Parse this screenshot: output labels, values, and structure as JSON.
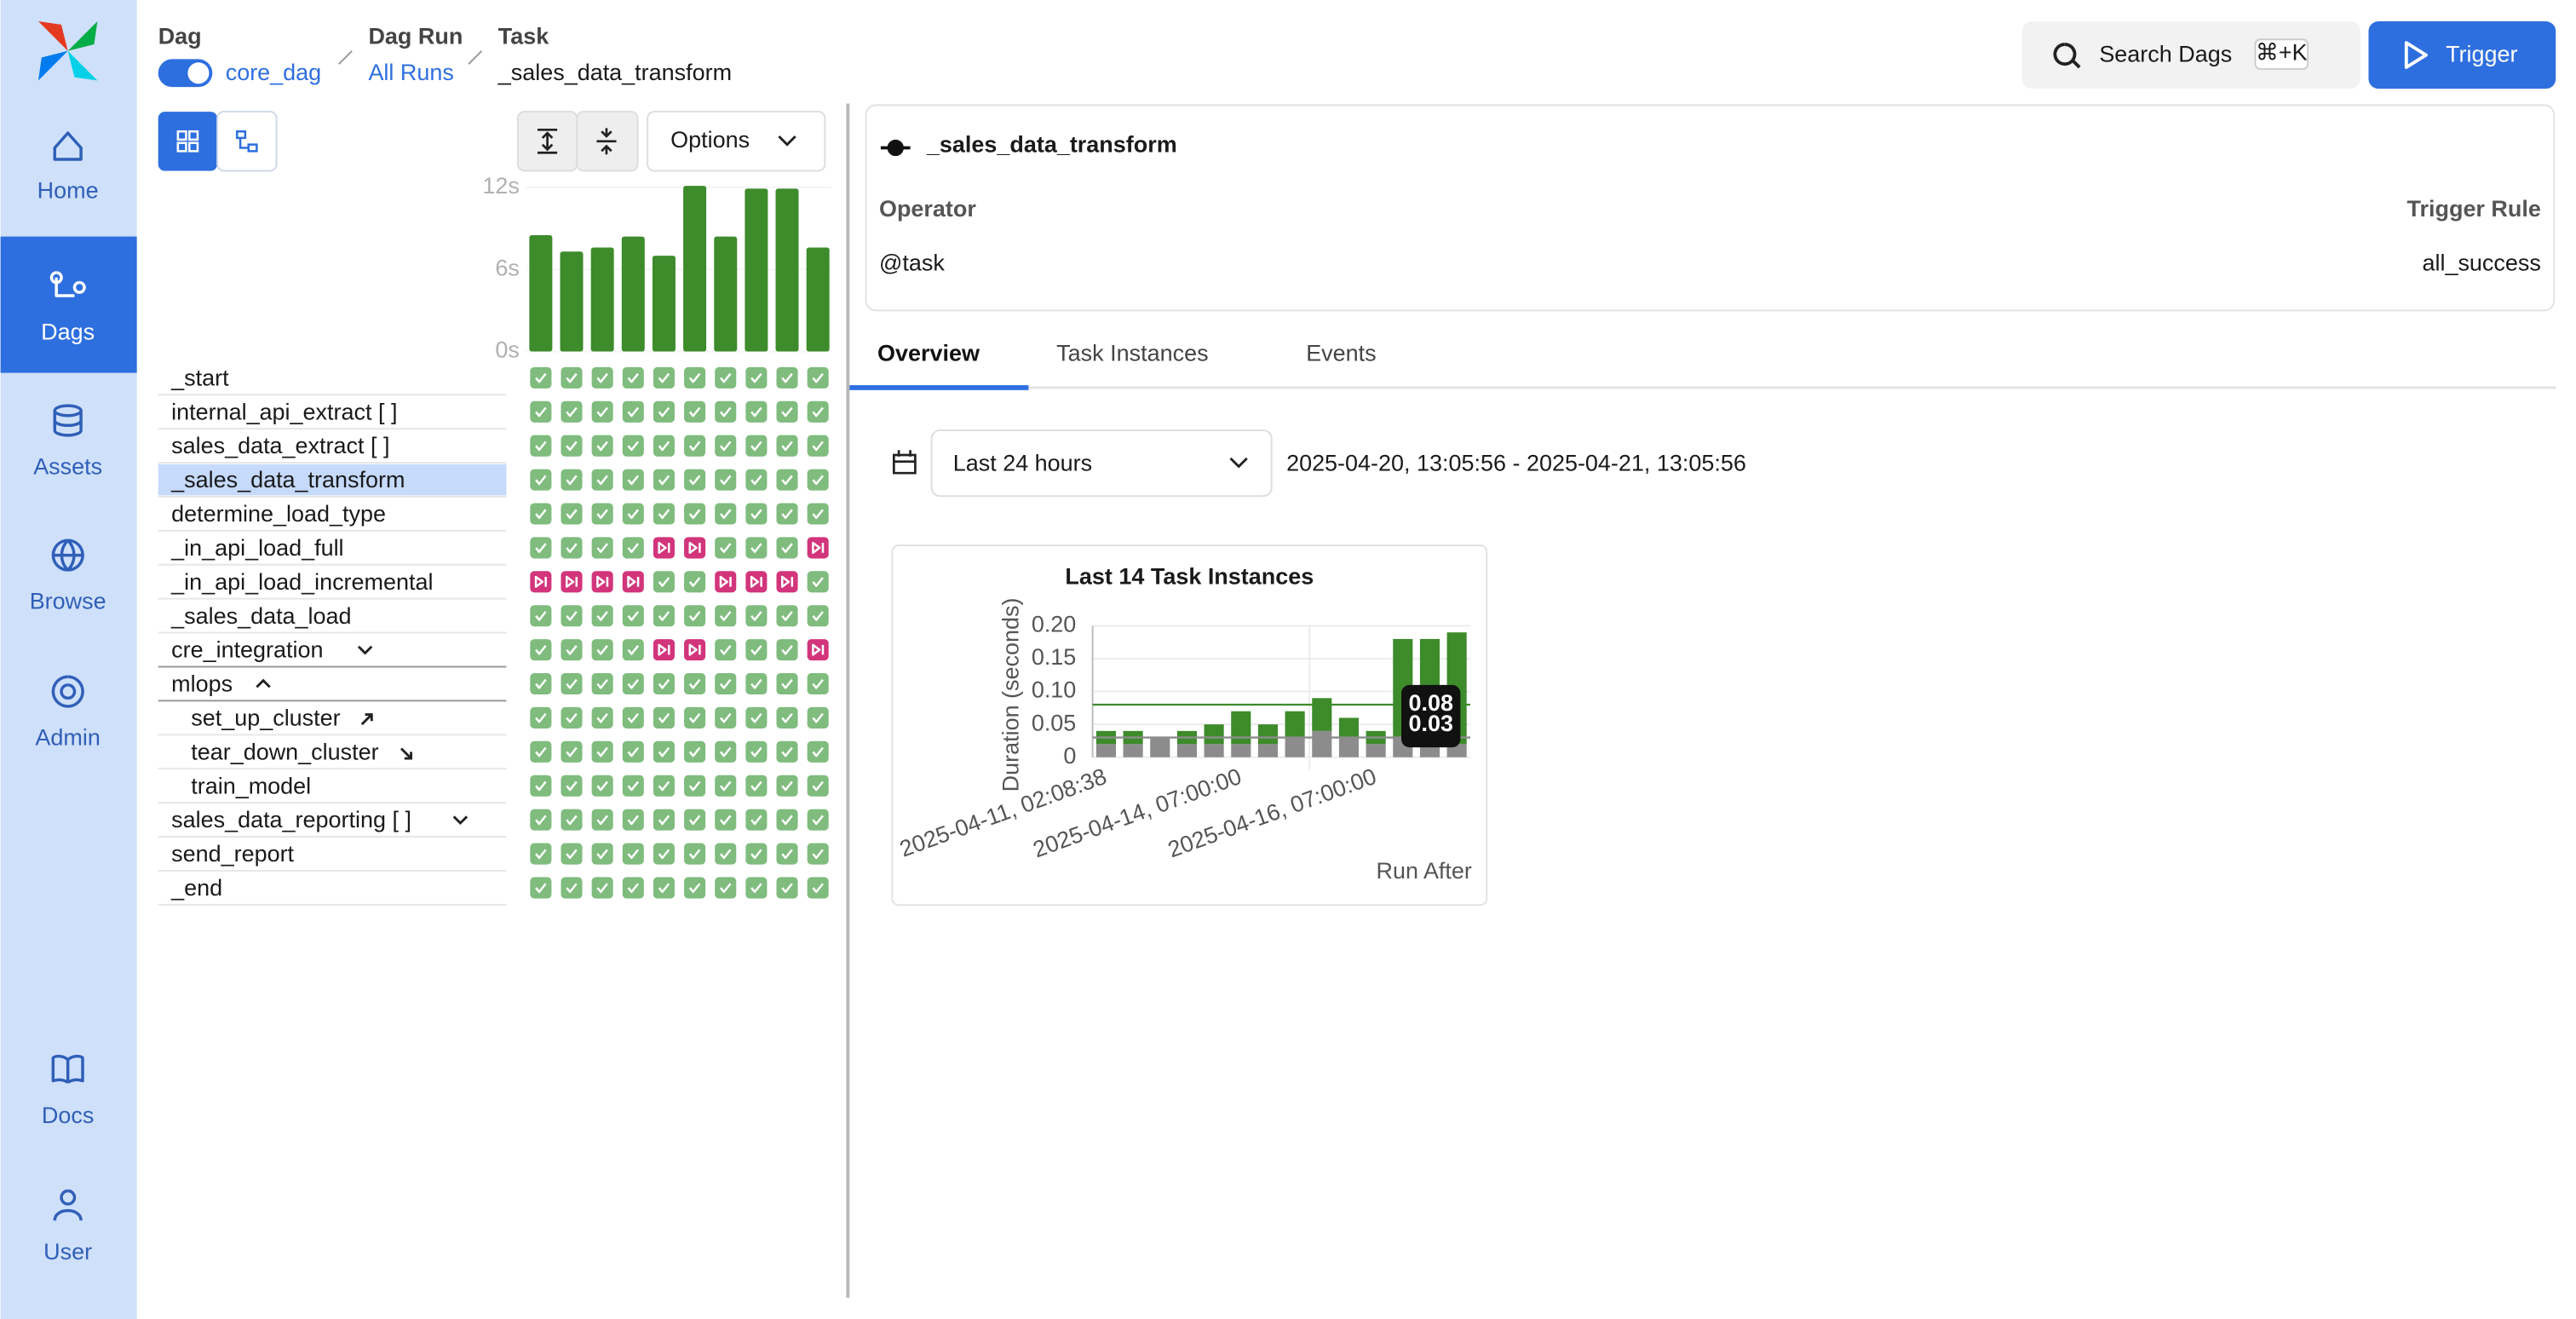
{
  "sidebar": {
    "items": [
      "Home",
      "Dags",
      "Assets",
      "Browse",
      "Admin",
      "Docs",
      "User"
    ]
  },
  "header": {
    "dag_label": "Dag",
    "dag": "core_dag",
    "dag_run_label": "Dag Run",
    "dag_run": "All Runs",
    "task_label": "Task",
    "task": "_sales_data_transform",
    "search": "Search Dags",
    "shortcut": "⌘+K",
    "trigger": "Trigger"
  },
  "grid": {
    "options": "Options",
    "task_names": [
      "_start",
      "internal_api_extract [ ]",
      "sales_data_extract [ ]",
      "_sales_data_transform",
      "determine_load_type",
      "_in_api_load_full",
      "_in_api_load_incremental",
      "_sales_data_load",
      "cre_integration",
      "mlops",
      "set_up_cluster",
      "tear_down_cluster",
      "train_model",
      "sales_data_reporting [ ]",
      "send_report",
      "_end"
    ],
    "cell_colors": [
      [
        "#7fbc7e",
        "#7fbc7e",
        "#7fbc7e",
        "#7fbc7e",
        "#7fbc7e",
        "#7fbc7e",
        "#7fbc7e",
        "#7fbc7e",
        "#7fbc7e",
        "#7fbc7e"
      ],
      [
        "#7fbc7e",
        "#7fbc7e",
        "#7fbc7e",
        "#7fbc7e",
        "#7fbc7e",
        "#7fbc7e",
        "#7fbc7e",
        "#7fbc7e",
        "#7fbc7e",
        "#7fbc7e"
      ],
      [
        "#7fbc7e",
        "#7fbc7e",
        "#7fbc7e",
        "#7fbc7e",
        "#7fbc7e",
        "#7fbc7e",
        "#7fbc7e",
        "#7fbc7e",
        "#7fbc7e",
        "#7fbc7e"
      ],
      [
        "#7fbc7e",
        "#7fbc7e",
        "#7fbc7e",
        "#7fbc7e",
        "#7fbc7e",
        "#7fbc7e",
        "#7fbc7e",
        "#7fbc7e",
        "#7fbc7e",
        "#7fbc7e"
      ],
      [
        "#7fbc7e",
        "#7fbc7e",
        "#7fbc7e",
        "#7fbc7e",
        "#7fbc7e",
        "#7fbc7e",
        "#7fbc7e",
        "#7fbc7e",
        "#7fbc7e",
        "#7fbc7e"
      ],
      [
        "#7fbc7e",
        "#7fbc7e",
        "#7fbc7e",
        "#7fbc7e",
        "#d2357b",
        "#d2357b",
        "#7fbc7e",
        "#7fbc7e",
        "#7fbc7e",
        "#d2357b"
      ],
      [
        "#d2357b",
        "#d2357b",
        "#d2357b",
        "#d2357b",
        "#7fbc7e",
        "#7fbc7e",
        "#d2357b",
        "#d2357b",
        "#d2357b",
        "#7fbc7e"
      ],
      [
        "#7fbc7e",
        "#7fbc7e",
        "#7fbc7e",
        "#7fbc7e",
        "#7fbc7e",
        "#7fbc7e",
        "#7fbc7e",
        "#7fbc7e",
        "#7fbc7e",
        "#7fbc7e"
      ],
      [
        "#7fbc7e",
        "#7fbc7e",
        "#7fbc7e",
        "#7fbc7e",
        "#d2357b",
        "#d2357b",
        "#7fbc7e",
        "#7fbc7e",
        "#7fbc7e",
        "#d2357b"
      ],
      [
        "#7fbc7e",
        "#7fbc7e",
        "#7fbc7e",
        "#7fbc7e",
        "#7fbc7e",
        "#7fbc7e",
        "#7fbc7e",
        "#7fbc7e",
        "#7fbc7e",
        "#7fbc7e"
      ],
      [
        "#7fbc7e",
        "#7fbc7e",
        "#7fbc7e",
        "#7fbc7e",
        "#7fbc7e",
        "#7fbc7e",
        "#7fbc7e",
        "#7fbc7e",
        "#7fbc7e",
        "#7fbc7e"
      ],
      [
        "#7fbc7e",
        "#7fbc7e",
        "#7fbc7e",
        "#7fbc7e",
        "#7fbc7e",
        "#7fbc7e",
        "#7fbc7e",
        "#7fbc7e",
        "#7fbc7e",
        "#7fbc7e"
      ],
      [
        "#7fbc7e",
        "#7fbc7e",
        "#7fbc7e",
        "#7fbc7e",
        "#7fbc7e",
        "#7fbc7e",
        "#7fbc7e",
        "#7fbc7e",
        "#7fbc7e",
        "#7fbc7e"
      ],
      [
        "#7fbc7e",
        "#7fbc7e",
        "#7fbc7e",
        "#7fbc7e",
        "#7fbc7e",
        "#7fbc7e",
        "#7fbc7e",
        "#7fbc7e",
        "#7fbc7e",
        "#7fbc7e"
      ],
      [
        "#7fbc7e",
        "#7fbc7e",
        "#7fbc7e",
        "#7fbc7e",
        "#7fbc7e",
        "#7fbc7e",
        "#7fbc7e",
        "#7fbc7e",
        "#7fbc7e",
        "#7fbc7e"
      ],
      [
        "#7fbc7e",
        "#7fbc7e",
        "#7fbc7e",
        "#7fbc7e",
        "#7fbc7e",
        "#7fbc7e",
        "#7fbc7e",
        "#7fbc7e",
        "#7fbc7e",
        "#7fbc7e"
      ]
    ]
  },
  "details": {
    "title": "_sales_data_transform",
    "operator_label": "Operator",
    "operator": "@task",
    "trigger_rule_label": "Trigger Rule",
    "trigger_rule": "all_success"
  },
  "tabs": [
    "Overview",
    "Task Instances",
    "Events"
  ],
  "filter": {
    "range": "Last 24 hours",
    "dates": "2025-04-20, 13:05:56 - 2025-04-21, 13:05:56"
  },
  "chart_data": [
    {
      "type": "bar",
      "values": [
        8.5,
        7.3,
        7.6,
        8.4,
        7.0,
        12.1,
        8.4,
        11.9,
        11.9,
        7.6
      ],
      "color": "#3d8b2b",
      "ylim": [
        0,
        12
      ],
      "yticks": [
        {
          "value": 0,
          "label": "0s"
        },
        {
          "value": 6,
          "label": "6s"
        },
        {
          "value": 12,
          "label": "12s"
        }
      ]
    },
    {
      "type": "stacked_bar",
      "title": "Last 14 Task Instances",
      "x_label": "Run After",
      "y_label": "Duration (seconds)",
      "categories": [
        "2025-04-11, 02:08:38",
        null,
        null,
        null,
        null,
        "2025-04-14, 07:00:00",
        null,
        null,
        null,
        null,
        "2025-04-16, 07:00:00",
        null,
        null,
        null
      ],
      "series": [
        {
          "color": "#8c8c8c",
          "values": [
            0.02,
            0.02,
            0.03,
            0.02,
            0.02,
            0.02,
            0.02,
            0.03,
            0.04,
            0.03,
            0.02,
            0.03,
            0.02,
            0.02
          ]
        },
        {
          "color": "#3d8b2b",
          "values": [
            0.02,
            0.02,
            0,
            0.02,
            0.03,
            0.05,
            0.03,
            0.04,
            0.05,
            0.03,
            0.02,
            0.15,
            0.16,
            0.17
          ]
        }
      ],
      "ylim": [
        0,
        0.2
      ],
      "yticks": [
        0,
        0.05,
        {
          "value": 0.1,
          "label": "0.10"
        },
        0.15,
        {
          "value": 0.2,
          "label": "0.20"
        }
      ],
      "reference_lines": [
        {
          "value": 0.08,
          "color": "#3d8b2b"
        },
        {
          "value": 0.03,
          "color": "#8c8c8c"
        }
      ]
    }
  ]
}
